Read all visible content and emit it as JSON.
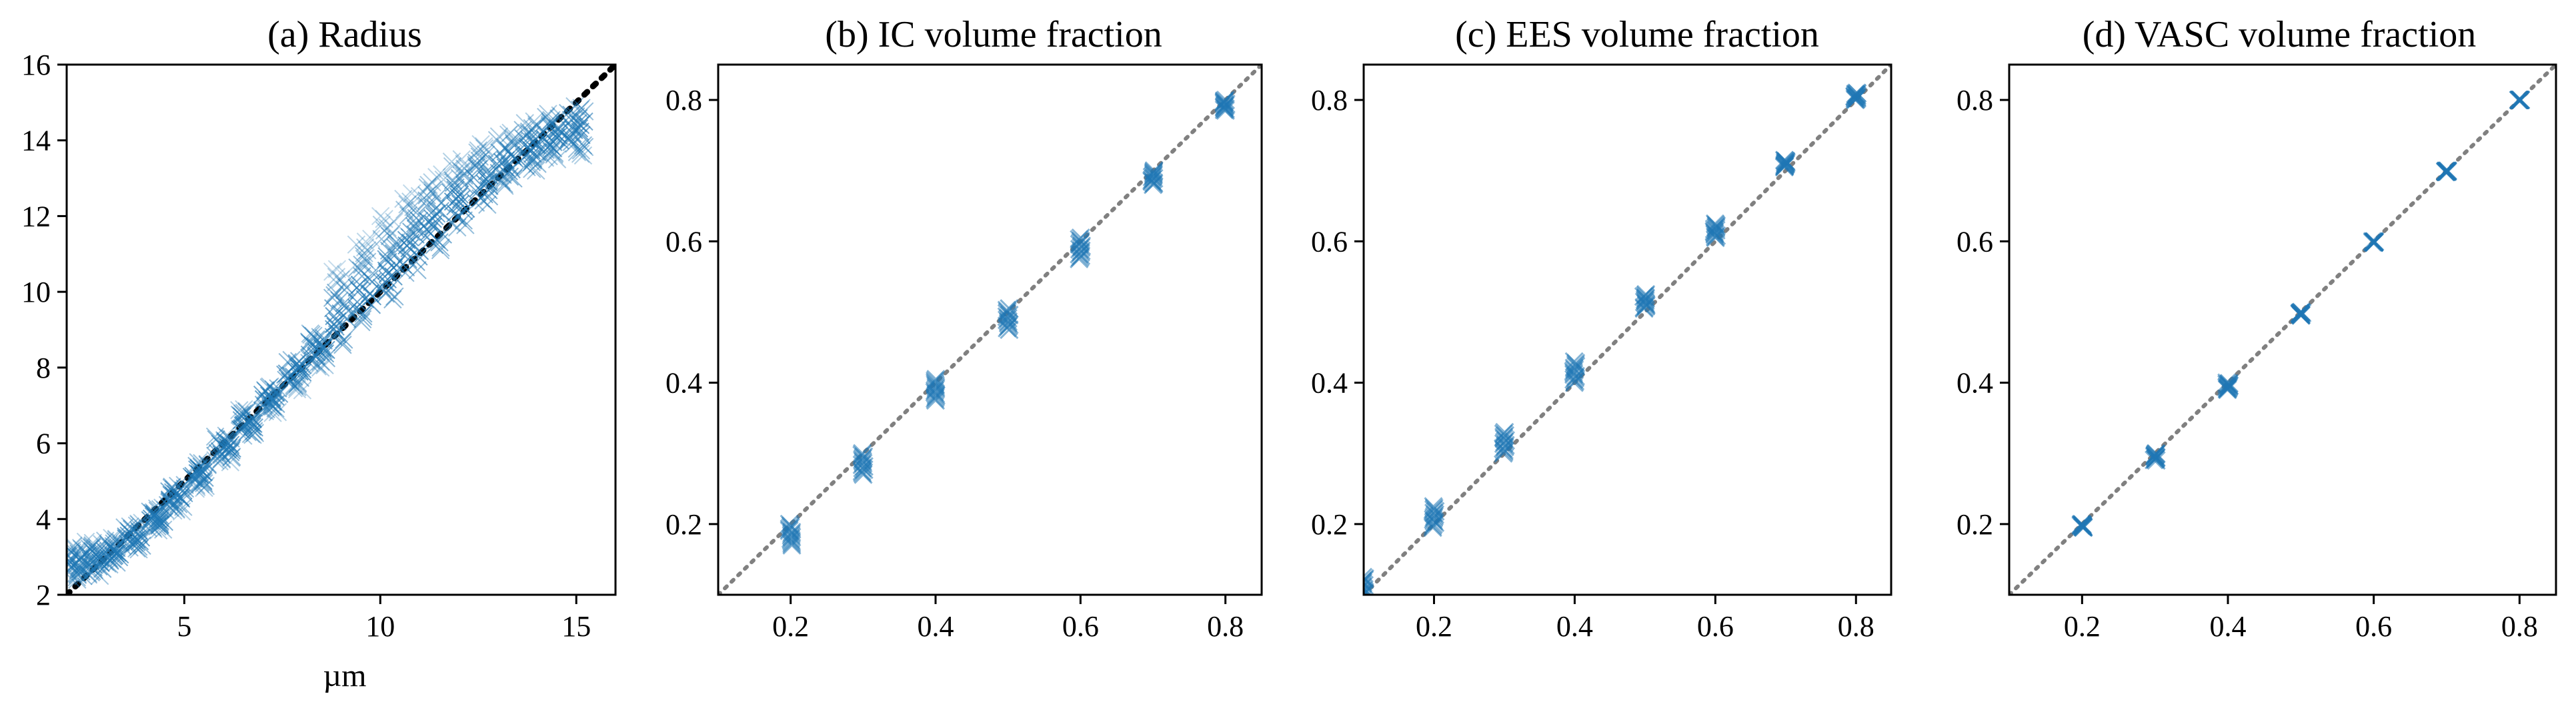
{
  "figure": {
    "background": "#ffffff",
    "marker_color": "#1f77b4"
  },
  "chart_data": [
    {
      "type": "scatter",
      "title": "(a) Radius",
      "xlabel": "µm",
      "ylabel": "",
      "xlim": [
        2,
        16
      ],
      "ylim": [
        2,
        16
      ],
      "xticks": [
        5,
        10,
        15
      ],
      "yticks": [
        2,
        4,
        6,
        8,
        10,
        12,
        14,
        16
      ],
      "marker": "x",
      "reference_line": {
        "style": "dotted",
        "color": "#000000",
        "points": [
          [
            2,
            2
          ],
          [
            16,
            16
          ]
        ]
      },
      "series": [
        {
          "values": [
            {
              "x": 2.2,
              "y_min": 2.4,
              "y_max": 3.3,
              "y_mean": 2.8
            },
            {
              "x": 2.7,
              "y_min": 2.5,
              "y_max": 3.4,
              "y_mean": 2.9
            },
            {
              "x": 3.2,
              "y_min": 2.8,
              "y_max": 3.5,
              "y_mean": 3.1
            },
            {
              "x": 3.7,
              "y_min": 3.2,
              "y_max": 3.9,
              "y_mean": 3.5
            },
            {
              "x": 4.3,
              "y_min": 3.7,
              "y_max": 4.3,
              "y_mean": 4.0
            },
            {
              "x": 4.8,
              "y_min": 4.2,
              "y_max": 4.9,
              "y_mean": 4.6
            },
            {
              "x": 5.4,
              "y_min": 4.8,
              "y_max": 5.5,
              "y_mean": 5.2
            },
            {
              "x": 6.0,
              "y_min": 5.5,
              "y_max": 6.2,
              "y_mean": 5.9
            },
            {
              "x": 6.6,
              "y_min": 6.2,
              "y_max": 6.9,
              "y_mean": 6.5
            },
            {
              "x": 7.2,
              "y_min": 6.8,
              "y_max": 7.5,
              "y_mean": 7.2
            },
            {
              "x": 7.8,
              "y_min": 7.4,
              "y_max": 8.2,
              "y_mean": 7.9
            },
            {
              "x": 8.4,
              "y_min": 8.0,
              "y_max": 8.9,
              "y_mean": 8.5
            },
            {
              "x": 9.0,
              "y_min": 8.6,
              "y_max": 10.6,
              "y_mean": 9.2
            },
            {
              "x": 9.6,
              "y_min": 9.2,
              "y_max": 11.4,
              "y_mean": 9.9
            },
            {
              "x": 10.2,
              "y_min": 9.8,
              "y_max": 12.0,
              "y_mean": 10.5
            },
            {
              "x": 10.8,
              "y_min": 10.5,
              "y_max": 12.6,
              "y_mean": 11.2
            },
            {
              "x": 11.4,
              "y_min": 11.1,
              "y_max": 13.1,
              "y_mean": 11.8
            },
            {
              "x": 12.0,
              "y_min": 11.7,
              "y_max": 13.5,
              "y_mean": 12.4
            },
            {
              "x": 12.6,
              "y_min": 12.3,
              "y_max": 13.9,
              "y_mean": 12.9
            },
            {
              "x": 13.2,
              "y_min": 12.8,
              "y_max": 14.2,
              "y_mean": 13.4
            },
            {
              "x": 13.8,
              "y_min": 13.2,
              "y_max": 14.5,
              "y_mean": 13.8
            },
            {
              "x": 14.4,
              "y_min": 13.5,
              "y_max": 14.7,
              "y_mean": 14.1
            },
            {
              "x": 15.0,
              "y_min": 13.6,
              "y_max": 14.9,
              "y_mean": 14.3
            }
          ]
        }
      ]
    },
    {
      "type": "scatter",
      "title": "(b) IC volume fraction",
      "xlabel": "",
      "ylabel": "",
      "xlim": [
        0.1,
        0.85
      ],
      "ylim": [
        0.1,
        0.85
      ],
      "xticks": [
        0.2,
        0.4,
        0.6,
        0.8
      ],
      "yticks": [
        0.2,
        0.4,
        0.6,
        0.8
      ],
      "marker": "x",
      "reference_line": {
        "style": "dotted",
        "color": "#808080",
        "points": [
          [
            0.1,
            0.1
          ],
          [
            0.85,
            0.85
          ]
        ]
      },
      "series": [
        {
          "values": [
            {
              "x": 0.2,
              "y_min": 0.17,
              "y_max": 0.2,
              "y_mean": 0.185
            },
            {
              "x": 0.3,
              "y_min": 0.27,
              "y_max": 0.3,
              "y_mean": 0.285
            },
            {
              "x": 0.4,
              "y_min": 0.375,
              "y_max": 0.405,
              "y_mean": 0.39
            },
            {
              "x": 0.5,
              "y_min": 0.475,
              "y_max": 0.505,
              "y_mean": 0.49
            },
            {
              "x": 0.6,
              "y_min": 0.575,
              "y_max": 0.605,
              "y_mean": 0.59
            },
            {
              "x": 0.7,
              "y_min": 0.68,
              "y_max": 0.7,
              "y_mean": 0.69
            },
            {
              "x": 0.8,
              "y_min": 0.785,
              "y_max": 0.8,
              "y_mean": 0.795
            }
          ]
        }
      ]
    },
    {
      "type": "scatter",
      "title": "(c) EES volume fraction",
      "xlabel": "",
      "ylabel": "",
      "xlim": [
        0.1,
        0.85
      ],
      "ylim": [
        0.1,
        0.85
      ],
      "xticks": [
        0.2,
        0.4,
        0.6,
        0.8
      ],
      "yticks": [
        0.2,
        0.4,
        0.6,
        0.8
      ],
      "marker": "x",
      "reference_line": {
        "style": "dotted",
        "color": "#808080",
        "points": [
          [
            0.1,
            0.1
          ],
          [
            0.85,
            0.85
          ]
        ]
      },
      "series": [
        {
          "values": [
            {
              "x": 0.1,
              "y_min": 0.1,
              "y_max": 0.125,
              "y_mean": 0.11
            },
            {
              "x": 0.2,
              "y_min": 0.195,
              "y_max": 0.225,
              "y_mean": 0.21
            },
            {
              "x": 0.3,
              "y_min": 0.3,
              "y_max": 0.33,
              "y_mean": 0.315
            },
            {
              "x": 0.4,
              "y_min": 0.4,
              "y_max": 0.43,
              "y_mean": 0.415
            },
            {
              "x": 0.5,
              "y_min": 0.505,
              "y_max": 0.525,
              "y_mean": 0.515
            },
            {
              "x": 0.6,
              "y_min": 0.605,
              "y_max": 0.625,
              "y_mean": 0.615
            },
            {
              "x": 0.7,
              "y_min": 0.705,
              "y_max": 0.715,
              "y_mean": 0.71
            },
            {
              "x": 0.8,
              "y_min": 0.8,
              "y_max": 0.81,
              "y_mean": 0.805
            }
          ]
        }
      ]
    },
    {
      "type": "scatter",
      "title": "(d) VASC volume fraction",
      "xlabel": "",
      "ylabel": "",
      "xlim": [
        0.1,
        0.85
      ],
      "ylim": [
        0.1,
        0.85
      ],
      "xticks": [
        0.2,
        0.4,
        0.6,
        0.8
      ],
      "yticks": [
        0.2,
        0.4,
        0.6,
        0.8
      ],
      "marker": "x",
      "reference_line": {
        "style": "dotted",
        "color": "#808080",
        "points": [
          [
            0.1,
            0.1
          ],
          [
            0.85,
            0.85
          ]
        ]
      },
      "series": [
        {
          "values": [
            {
              "x": 0.2,
              "y_min": 0.195,
              "y_max": 0.2,
              "y_mean": 0.197
            },
            {
              "x": 0.3,
              "y_min": 0.29,
              "y_max": 0.3,
              "y_mean": 0.295
            },
            {
              "x": 0.4,
              "y_min": 0.39,
              "y_max": 0.4,
              "y_mean": 0.395
            },
            {
              "x": 0.5,
              "y_min": 0.495,
              "y_max": 0.5,
              "y_mean": 0.497
            },
            {
              "x": 0.6,
              "y_min": 0.598,
              "y_max": 0.6,
              "y_mean": 0.599
            },
            {
              "x": 0.7,
              "y_min": 0.698,
              "y_max": 0.7,
              "y_mean": 0.699
            },
            {
              "x": 0.8,
              "y_min": 0.8,
              "y_max": 0.8,
              "y_mean": 0.8
            }
          ]
        }
      ]
    }
  ]
}
